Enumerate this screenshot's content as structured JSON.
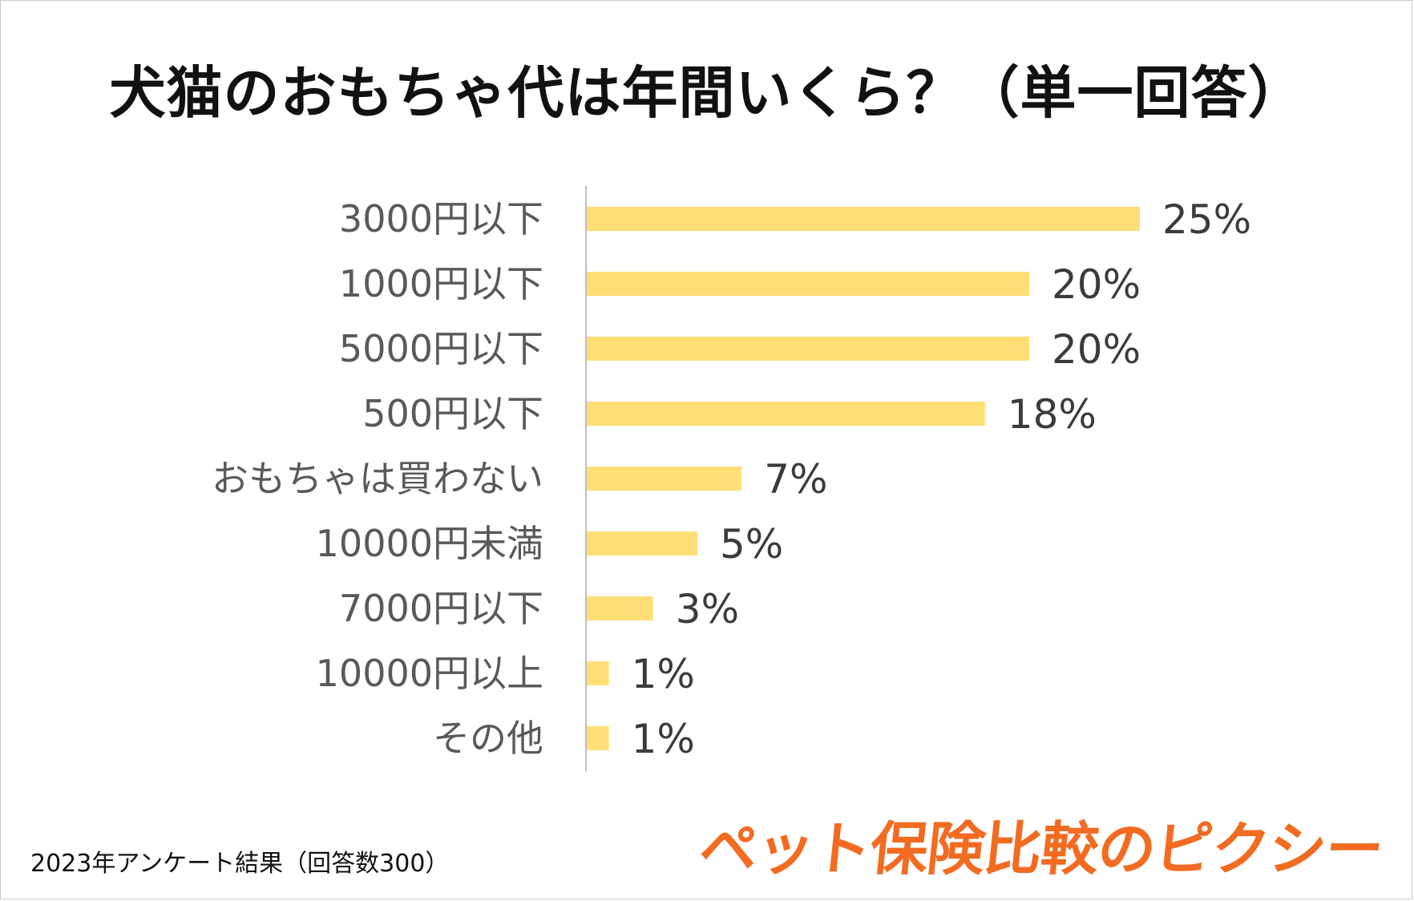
{
  "chart_data": {
    "type": "bar",
    "orientation": "horizontal",
    "title": "犬猫のおもちゃ代は年間いくら？（単一回答）",
    "categories": [
      "3000円以下",
      "1000円以下",
      "5000円以下",
      "500円以下",
      "おもちゃは買わない",
      "10000円未満",
      "7000円以下",
      "10000円以上",
      "その他"
    ],
    "values": [
      25,
      20,
      20,
      18,
      7,
      5,
      3,
      1,
      1
    ],
    "value_labels": [
      "25%",
      "20%",
      "20%",
      "18%",
      "7%",
      "5%",
      "3%",
      "1%",
      "1%"
    ],
    "unit": "%",
    "xlim": [
      0,
      25
    ],
    "grid": false,
    "legend": "none",
    "bar_color": "#ffde75",
    "axis_color": "#bfbfbf"
  },
  "footer": {
    "note": "2023年アンケート結果（回答数300）",
    "brand": "ペット保険比較のピクシー",
    "brand_color": "#f26b21"
  }
}
